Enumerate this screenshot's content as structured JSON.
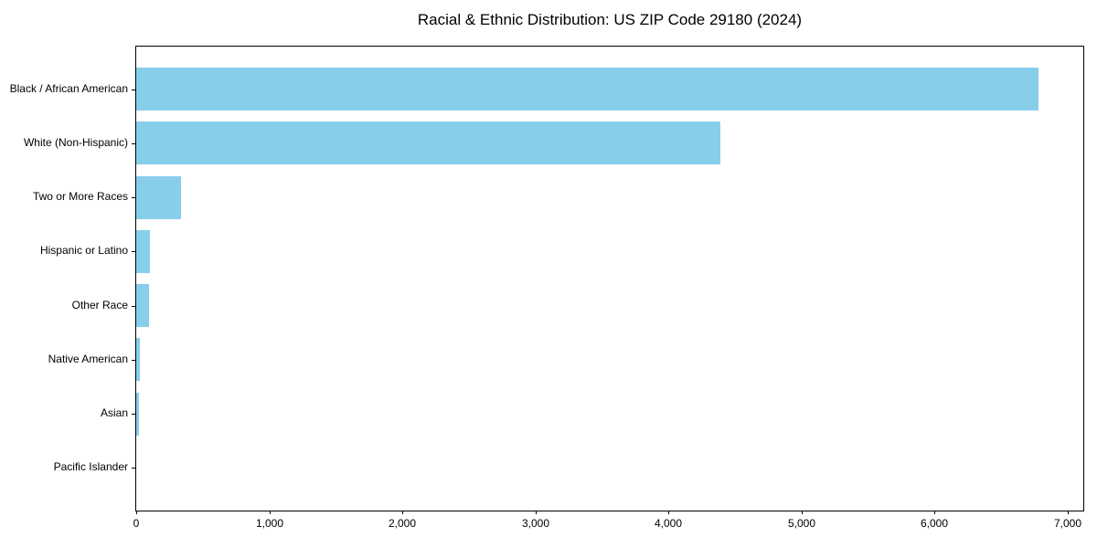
{
  "chart_data": {
    "type": "bar",
    "orientation": "horizontal",
    "title": "Racial & Ethnic Distribution: US ZIP Code 29180 (2024)",
    "categories": [
      "Black / African American",
      "White (Non-Hispanic)",
      "Two or More Races",
      "Hispanic or Latino",
      "Other Race",
      "Native American",
      "Asian",
      "Pacific Islander"
    ],
    "values": [
      6780,
      4395,
      340,
      100,
      98,
      25,
      20,
      0
    ],
    "bar_color": "#87CEEB",
    "xlabel": "",
    "ylabel": "",
    "xlim": [
      0,
      7120
    ],
    "x_ticks": [
      0,
      1000,
      2000,
      3000,
      4000,
      5000,
      6000,
      7000
    ],
    "x_tick_labels": [
      "0",
      "1,000",
      "2,000",
      "3,000",
      "4,000",
      "5,000",
      "6,000",
      "7,000"
    ],
    "grid": false,
    "legend": null,
    "spine_color": "#000000",
    "background_color": "#ffffff"
  }
}
